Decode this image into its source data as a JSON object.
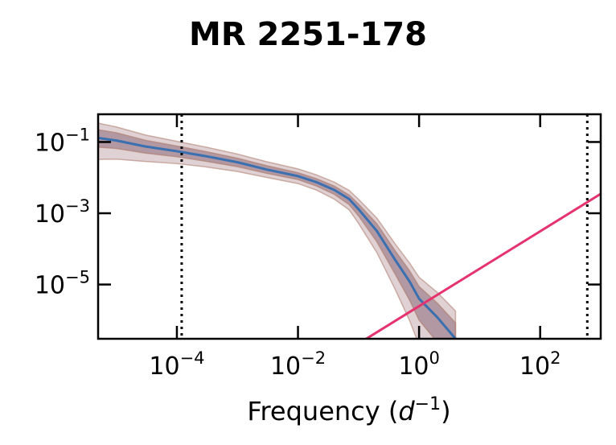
{
  "chart_data": {
    "type": "line",
    "title": "MR 2251-178",
    "xlabel": {
      "text": "Frequency (",
      "var": "d",
      "exp": "−1",
      "close": ")"
    },
    "ylabel": "",
    "x_scale": "log",
    "y_scale": "log",
    "xlim": [
      5e-06,
      1000
    ],
    "ylim": [
      3e-07,
      0.6
    ],
    "x_ticks": [
      {
        "value": 0.0001,
        "base": "10",
        "exp": "−4"
      },
      {
        "value": 0.01,
        "base": "10",
        "exp": "−2"
      },
      {
        "value": 1,
        "base": "10",
        "exp": "0"
      },
      {
        "value": 100,
        "base": "10",
        "exp": "2"
      }
    ],
    "y_ticks": [
      {
        "value": 0.1,
        "base": "10",
        "exp": "−1"
      },
      {
        "value": 0.001,
        "base": "10",
        "exp": "−3"
      },
      {
        "value": 1e-05,
        "base": "10",
        "exp": "−5"
      }
    ],
    "vlines": [
      0.00012,
      600
    ],
    "colors": {
      "model": "#3a6fb0",
      "band_inner": "#8a6a78",
      "band_outer": "#b89aa0",
      "band_outline": "#b08070",
      "powerlaw": "#e5336e",
      "vline": "#000000",
      "axis": "#000000"
    },
    "series": [
      {
        "kind": "model_psd",
        "x": [
          5e-06,
          1e-05,
          3e-05,
          0.0001,
          0.0003,
          0.001,
          0.003,
          0.01,
          0.02,
          0.04,
          0.07,
          0.1,
          0.2,
          0.4,
          0.7,
          1,
          2,
          4
        ],
        "y": [
          0.13,
          0.11,
          0.075,
          0.055,
          0.04,
          0.027,
          0.017,
          0.011,
          0.0075,
          0.0045,
          0.0025,
          0.0013,
          0.00032,
          5e-05,
          1.2e-05,
          4e-06,
          1.2e-06,
          3e-07
        ],
        "inner_low_factor": [
          0.55,
          0.6,
          0.65,
          0.7,
          0.72,
          0.75,
          0.78,
          0.8,
          0.78,
          0.75,
          0.7,
          0.65,
          0.5,
          0.4,
          0.3,
          0.25,
          0.2,
          0.2
        ],
        "inner_high_factor": [
          1.7,
          1.65,
          1.5,
          1.4,
          1.35,
          1.3,
          1.28,
          1.25,
          1.25,
          1.28,
          1.3,
          1.4,
          1.6,
          1.8,
          2.0,
          2.2,
          2.5,
          2.8
        ],
        "outer_low_factor": [
          0.25,
          0.3,
          0.38,
          0.45,
          0.5,
          0.55,
          0.6,
          0.62,
          0.6,
          0.55,
          0.5,
          0.4,
          0.25,
          0.15,
          0.08,
          0.05,
          0.05,
          0.05
        ],
        "outer_high_factor": [
          2.6,
          2.4,
          2.1,
          1.9,
          1.8,
          1.7,
          1.65,
          1.6,
          1.6,
          1.65,
          1.75,
          1.9,
          2.3,
          2.8,
          3.3,
          4.0,
          5.0,
          6.0
        ]
      },
      {
        "kind": "powerlaw",
        "x": [
          0.1,
          1000
        ],
        "y": [
          2.2e-07,
          0.0035
        ]
      }
    ]
  }
}
